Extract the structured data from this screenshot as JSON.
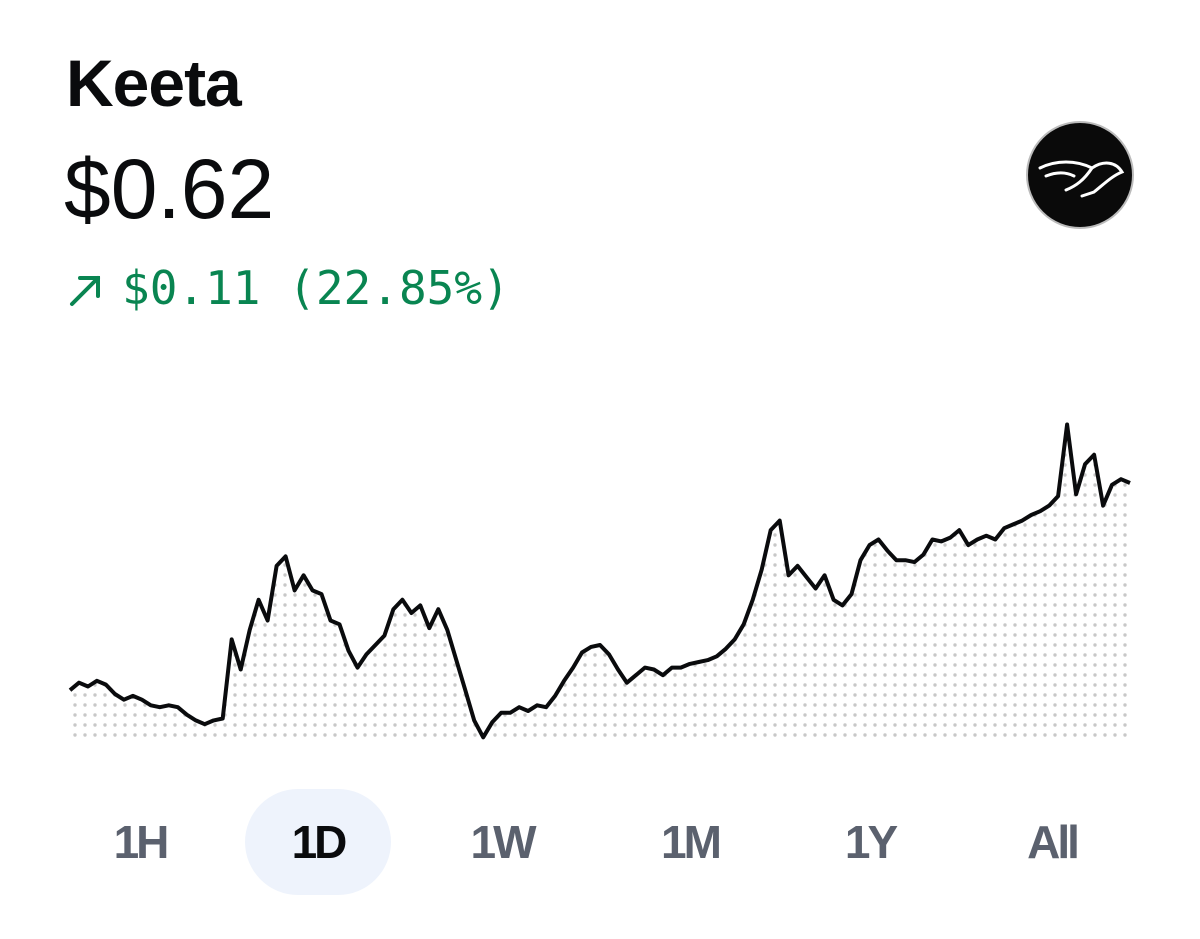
{
  "header": {
    "name": "Keeta",
    "price": "$0.62",
    "change": "$0.11 (22.85%)"
  },
  "chart_data": {
    "type": "area",
    "color": "#0a0b0d",
    "values": [
      0.51,
      0.514,
      0.512,
      0.515,
      0.513,
      0.508,
      0.505,
      0.507,
      0.505,
      0.502,
      0.501,
      0.502,
      0.501,
      0.497,
      0.494,
      0.492,
      0.494,
      0.495,
      0.537,
      0.521,
      0.542,
      0.558,
      0.547,
      0.576,
      0.581,
      0.563,
      0.571,
      0.563,
      0.561,
      0.547,
      0.545,
      0.531,
      0.522,
      0.529,
      0.534,
      0.539,
      0.553,
      0.558,
      0.551,
      0.555,
      0.543,
      0.553,
      0.542,
      0.526,
      0.51,
      0.494,
      0.485,
      0.493,
      0.498,
      0.498,
      0.501,
      0.499,
      0.502,
      0.501,
      0.507,
      0.515,
      0.522,
      0.53,
      0.533,
      0.534,
      0.529,
      0.521,
      0.514,
      0.518,
      0.522,
      0.521,
      0.518,
      0.522,
      0.522,
      0.524,
      0.525,
      0.526,
      0.528,
      0.532,
      0.537,
      0.545,
      0.558,
      0.574,
      0.595,
      0.6,
      0.571,
      0.576,
      0.57,
      0.564,
      0.571,
      0.558,
      0.555,
      0.561,
      0.579,
      0.587,
      0.59,
      0.584,
      0.579,
      0.579,
      0.578,
      0.582,
      0.59,
      0.589,
      0.591,
      0.595,
      0.587,
      0.59,
      0.592,
      0.59,
      0.596,
      0.598,
      0.6,
      0.603,
      0.605,
      0.608,
      0.613,
      0.651,
      0.614,
      0.63,
      0.635,
      0.608,
      0.619,
      0.622,
      0.62
    ],
    "ylim": [
      0.482,
      0.655
    ]
  },
  "timeframes": {
    "labels": [
      "1H",
      "1D",
      "1W",
      "1M",
      "1Y",
      "All"
    ],
    "selected": 1
  }
}
